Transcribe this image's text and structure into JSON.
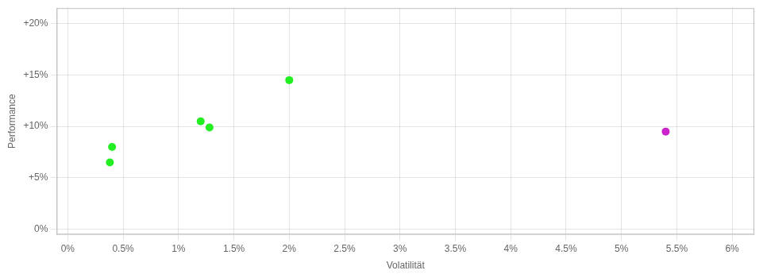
{
  "chart_data": {
    "type": "scatter",
    "xlabel": "Volatilität",
    "ylabel": "Performance",
    "series": [
      {
        "color": "#22ee22",
        "x": [
          0.004,
          0.0038,
          0.012,
          0.0128,
          0.02
        ],
        "values": [
          0.08,
          0.065,
          0.105,
          0.099,
          0.145
        ]
      },
      {
        "color": "#cc22cc",
        "x": [
          0.054
        ],
        "values": [
          0.095
        ]
      }
    ],
    "xlim": [
      -0.001,
      0.062
    ],
    "ylim": [
      -0.005,
      0.215
    ],
    "xticks": [
      {
        "value": 0.0,
        "label": "0%"
      },
      {
        "value": 0.005,
        "label": "0.5%"
      },
      {
        "value": 0.01,
        "label": "1%"
      },
      {
        "value": 0.015,
        "label": "1.5%"
      },
      {
        "value": 0.02,
        "label": "2%"
      },
      {
        "value": 0.025,
        "label": "2.5%"
      },
      {
        "value": 0.03,
        "label": "3%"
      },
      {
        "value": 0.035,
        "label": "3.5%"
      },
      {
        "value": 0.04,
        "label": "4%"
      },
      {
        "value": 0.045,
        "label": "4.5%"
      },
      {
        "value": 0.05,
        "label": "5%"
      },
      {
        "value": 0.055,
        "label": "5.5%"
      },
      {
        "value": 0.06,
        "label": "6%"
      }
    ],
    "yticks": [
      {
        "value": 0.0,
        "label": "0%"
      },
      {
        "value": 0.05,
        "label": "+5%"
      },
      {
        "value": 0.1,
        "label": "+10%"
      },
      {
        "value": 0.15,
        "label": "+15%"
      },
      {
        "value": 0.2,
        "label": "+20%"
      }
    ],
    "grid": true
  }
}
